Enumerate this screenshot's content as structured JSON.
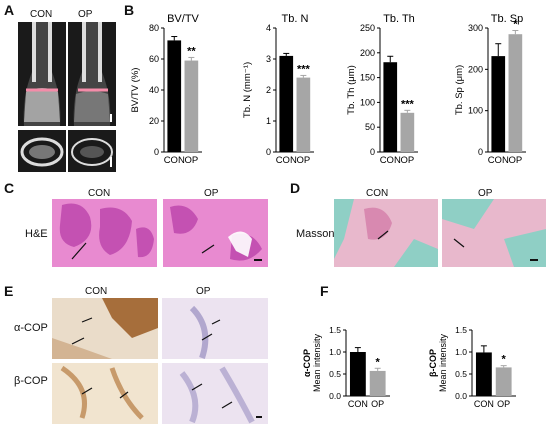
{
  "panels": {
    "A": {
      "label": "A",
      "groups": [
        "CON",
        "OP"
      ]
    },
    "B": {
      "label": "B"
    },
    "C": {
      "label": "C",
      "stain": "H&E",
      "groups": [
        "CON",
        "OP"
      ]
    },
    "D": {
      "label": "D",
      "stain": "Masson",
      "groups": [
        "CON",
        "OP"
      ]
    },
    "E": {
      "label": "E",
      "rows": [
        "α-COP",
        "β-COP"
      ],
      "groups": [
        "CON",
        "OP"
      ]
    },
    "F": {
      "label": "F"
    }
  },
  "colors": {
    "con": "#000000",
    "op": "#a6a6a6",
    "he_bg": "#e88ad0",
    "he_tissue": "#c451b2",
    "masson_bg": "#e8b8cc",
    "masson_green": "#8fcfc5",
    "ihc_bg": "#ece3f0",
    "brown": "#9a5a22",
    "purple": "#8a7fb8",
    "microct_bg": "#1a1a1a",
    "microct_bone": "#dddddd",
    "ruler": "#f48ca9"
  },
  "chart_data": [
    {
      "type": "bar",
      "title": "BV/TV",
      "ylabel": "BV/TV (%)",
      "categories": [
        "CON",
        "OP"
      ],
      "values": [
        72,
        59
      ],
      "errors": [
        2.5,
        2
      ],
      "ylim": [
        0,
        80
      ],
      "yticks": [
        0,
        20,
        40,
        60,
        80
      ],
      "significance": "**"
    },
    {
      "type": "bar",
      "title": "Tb. N",
      "ylabel": "Tb. N (mm⁻¹)",
      "categories": [
        "CON",
        "OP"
      ],
      "values": [
        3.1,
        2.4
      ],
      "errors": [
        0.08,
        0.07
      ],
      "ylim": [
        0,
        4
      ],
      "yticks": [
        0,
        1,
        2,
        3,
        4
      ],
      "significance": "***"
    },
    {
      "type": "bar",
      "title": "Tb. Th",
      "ylabel": "Tb. Th (μm)",
      "categories": [
        "CON",
        "OP"
      ],
      "values": [
        181,
        79
      ],
      "errors": [
        12,
        5
      ],
      "ylim": [
        0,
        250
      ],
      "yticks": [
        0,
        50,
        100,
        150,
        200,
        250
      ],
      "significance": "***"
    },
    {
      "type": "bar",
      "title": "Tb. Sp",
      "ylabel": "Tb. Sp (μm)",
      "categories": [
        "CON",
        "OP"
      ],
      "values": [
        232,
        285
      ],
      "errors": [
        30,
        9
      ],
      "ylim": [
        0,
        300
      ],
      "yticks": [
        0,
        100,
        200,
        300
      ],
      "significance": "*"
    },
    {
      "type": "bar",
      "title": "",
      "ylabel": "α-COP\nMean intensity",
      "categories": [
        "CON",
        "OP"
      ],
      "values": [
        1.0,
        0.57
      ],
      "errors": [
        0.1,
        0.06
      ],
      "ylim": [
        0,
        1.5
      ],
      "yticks": [
        0.0,
        0.5,
        1.0,
        1.5
      ],
      "significance": "*"
    },
    {
      "type": "bar",
      "title": "",
      "ylabel": "β-COP\nMean intensity",
      "categories": [
        "CON",
        "OP"
      ],
      "values": [
        0.99,
        0.65
      ],
      "errors": [
        0.15,
        0.04
      ],
      "ylim": [
        0,
        1.5
      ],
      "yticks": [
        0.0,
        0.5,
        1.0,
        1.5
      ],
      "significance": "*"
    }
  ]
}
